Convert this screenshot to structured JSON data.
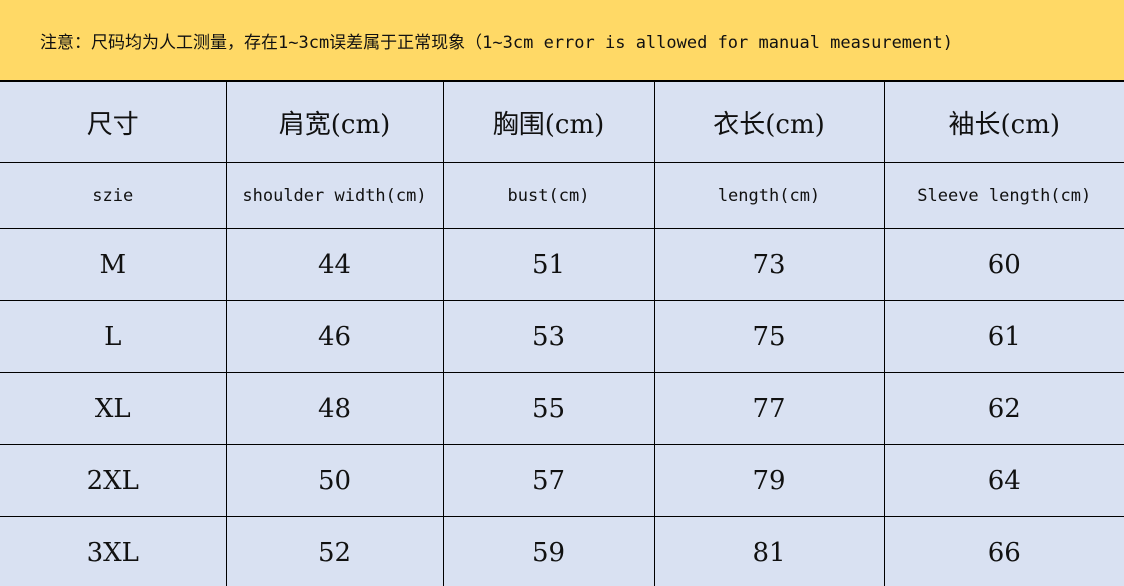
{
  "note": "注意：尺码均为人工测量，存在1~3cm误差属于正常现象（1~3cm error is allowed for manual measurement)",
  "headers_cn": [
    "尺寸",
    "肩宽(cm)",
    "胸围(cm)",
    "衣长(cm)",
    "袖长(cm)"
  ],
  "headers_en": [
    "szie",
    "shoulder width(cm)",
    "bust(cm)",
    "length(cm)",
    "Sleeve length(cm)"
  ],
  "rows": [
    [
      "M",
      "44",
      "51",
      "73",
      "60"
    ],
    [
      "L",
      "46",
      "53",
      "75",
      "61"
    ],
    [
      "XL",
      "48",
      "55",
      "77",
      "62"
    ],
    [
      "2XL",
      "50",
      "57",
      "79",
      "64"
    ],
    [
      "3XL",
      "52",
      "59",
      "81",
      "66"
    ]
  ],
  "colors": {
    "note_bg": "#FFD966",
    "table_bg": "#D9E1F2"
  }
}
